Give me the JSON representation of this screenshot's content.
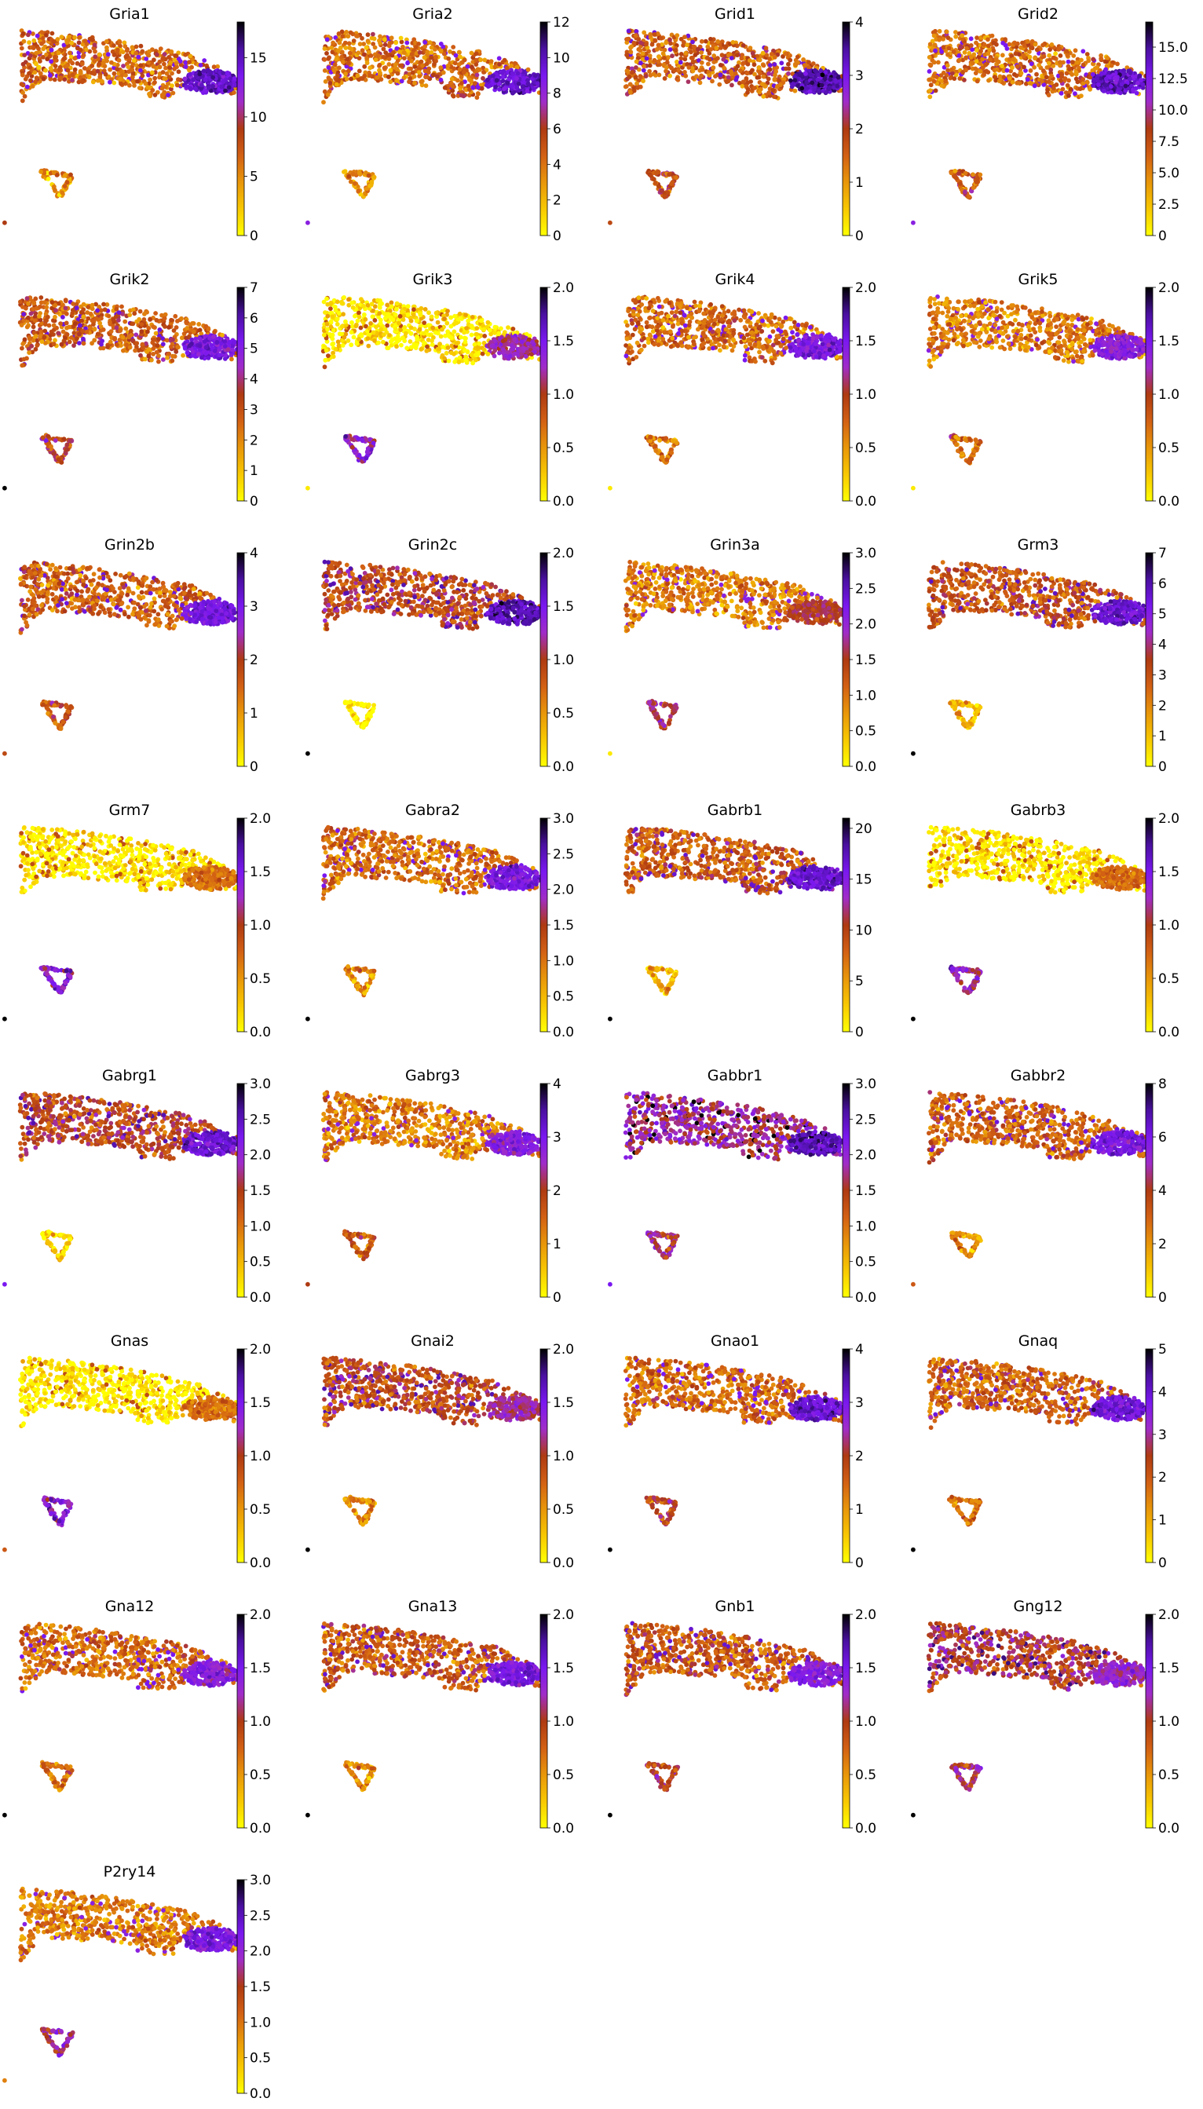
{
  "colormap": [
    "#ffff00",
    "#f8c800",
    "#e8960a",
    "#d26014",
    "#ae3a12",
    "#a02cc8",
    "#7a18f0",
    "#4a10a0",
    "#000000"
  ],
  "chart_data": [
    {
      "type": "scatter",
      "title": "Gria1",
      "vmax": 18,
      "ticks": [
        "0",
        "5",
        "10",
        "15"
      ],
      "tick_values": [
        0,
        5,
        10,
        15
      ],
      "mean_level": 0.35,
      "cluster_level": 0.8,
      "small_level": 0.25,
      "outlier_level": 0.5,
      "top_thin": false
    },
    {
      "type": "scatter",
      "title": "Gria2",
      "vmax": 12,
      "ticks": [
        "0",
        "2",
        "4",
        "6",
        "8",
        "10",
        "12"
      ],
      "tick_values": [
        0,
        2,
        4,
        6,
        8,
        10,
        12
      ],
      "mean_level": 0.35,
      "cluster_level": 0.8,
      "small_level": 0.25,
      "outlier_level": 0.7,
      "top_thin": false
    },
    {
      "type": "scatter",
      "title": "Grid1",
      "vmax": 4,
      "ticks": [
        "0",
        "1",
        "2",
        "3",
        "4"
      ],
      "tick_values": [
        0,
        1,
        2,
        3,
        4
      ],
      "mean_level": 0.38,
      "cluster_level": 0.85,
      "small_level": 0.45,
      "outlier_level": 0.45,
      "top_thin": false
    },
    {
      "type": "scatter",
      "title": "Grid2",
      "vmax": 17,
      "ticks": [
        "0",
        "2.5",
        "5.0",
        "7.5",
        "10.0",
        "12.5",
        "15.0"
      ],
      "tick_values": [
        0,
        2.5,
        5,
        7.5,
        10,
        12.5,
        15
      ],
      "mean_level": 0.35,
      "cluster_level": 0.82,
      "small_level": 0.4,
      "outlier_level": 0.7,
      "top_thin": false
    },
    {
      "type": "scatter",
      "title": "Grik2",
      "vmax": 7,
      "ticks": [
        "0",
        "1",
        "2",
        "3",
        "4",
        "5",
        "6",
        "7"
      ],
      "tick_values": [
        0,
        1,
        2,
        3,
        4,
        5,
        6,
        7
      ],
      "mean_level": 0.38,
      "cluster_level": 0.75,
      "small_level": 0.5,
      "outlier_level": 1.0,
      "top_thin": false
    },
    {
      "type": "scatter",
      "title": "Grik3",
      "vmax": 2.0,
      "ticks": [
        "0.0",
        "0.5",
        "1.0",
        "1.5",
        "2.0"
      ],
      "tick_values": [
        0,
        0.5,
        1,
        1.5,
        2
      ],
      "mean_level": 0.05,
      "cluster_level": 0.6,
      "small_level": 0.65,
      "outlier_level": 0.05,
      "top_thin": true
    },
    {
      "type": "scatter",
      "title": "Grik4",
      "vmax": 2.0,
      "ticks": [
        "0.0",
        "0.5",
        "1.0",
        "1.5",
        "2.0"
      ],
      "tick_values": [
        0,
        0.5,
        1,
        1.5,
        2
      ],
      "mean_level": 0.35,
      "cluster_level": 0.75,
      "small_level": 0.35,
      "outlier_level": 0.05,
      "top_thin": true
    },
    {
      "type": "scatter",
      "title": "Grik5",
      "vmax": 2.0,
      "ticks": [
        "0.0",
        "0.5",
        "1.0",
        "1.5",
        "2.0"
      ],
      "tick_values": [
        0,
        0.5,
        1,
        1.5,
        2
      ],
      "mean_level": 0.3,
      "cluster_level": 0.7,
      "small_level": 0.35,
      "outlier_level": 0.05,
      "top_thin": true
    },
    {
      "type": "scatter",
      "title": "Grin2b",
      "vmax": 4,
      "ticks": [
        "0",
        "1",
        "2",
        "3",
        "4"
      ],
      "tick_values": [
        0,
        1,
        2,
        3,
        4
      ],
      "mean_level": 0.38,
      "cluster_level": 0.75,
      "small_level": 0.45,
      "outlier_level": 0.45,
      "top_thin": false
    },
    {
      "type": "scatter",
      "title": "Grin2c",
      "vmax": 2.0,
      "ticks": [
        "0.0",
        "0.5",
        "1.0",
        "1.5",
        "2.0"
      ],
      "tick_values": [
        0,
        0.5,
        1,
        1.5,
        2
      ],
      "mean_level": 0.45,
      "cluster_level": 0.85,
      "small_level": 0.0,
      "outlier_level": 1.0,
      "top_thin": false
    },
    {
      "type": "scatter",
      "title": "Grin3a",
      "vmax": 3.0,
      "ticks": [
        "0.0",
        "0.5",
        "1.0",
        "1.5",
        "2.0",
        "2.5",
        "3.0"
      ],
      "tick_values": [
        0,
        0.5,
        1,
        1.5,
        2,
        2.5,
        3
      ],
      "mean_level": 0.3,
      "cluster_level": 0.5,
      "small_level": 0.55,
      "outlier_level": 0.05,
      "top_thin": true
    },
    {
      "type": "scatter",
      "title": "Grm3",
      "vmax": 7,
      "ticks": [
        "0",
        "1",
        "2",
        "3",
        "4",
        "5",
        "6",
        "7"
      ],
      "tick_values": [
        0,
        1,
        2,
        3,
        4,
        5,
        6,
        7
      ],
      "mean_level": 0.42,
      "cluster_level": 0.8,
      "small_level": 0.2,
      "outlier_level": 1.0,
      "top_thin": false
    },
    {
      "type": "scatter",
      "title": "Grm7",
      "vmax": 2.0,
      "ticks": [
        "0.0",
        "0.5",
        "1.0",
        "1.5",
        "2.0"
      ],
      "tick_values": [
        0,
        0.5,
        1,
        1.5,
        2
      ],
      "mean_level": 0.04,
      "cluster_level": 0.35,
      "small_level": 0.7,
      "outlier_level": 1.0,
      "top_thin": true
    },
    {
      "type": "scatter",
      "title": "Gabra2",
      "vmax": 3.0,
      "ticks": [
        "0.0",
        "0.5",
        "1.0",
        "1.5",
        "2.0",
        "2.5",
        "3.0"
      ],
      "tick_values": [
        0,
        0.5,
        1,
        1.5,
        2,
        2.5,
        3
      ],
      "mean_level": 0.35,
      "cluster_level": 0.75,
      "small_level": 0.3,
      "outlier_level": 1.0,
      "top_thin": false
    },
    {
      "type": "scatter",
      "title": "Gabrb1",
      "vmax": 21,
      "ticks": [
        "0",
        "5",
        "10",
        "15",
        "20"
      ],
      "tick_values": [
        0,
        5,
        10,
        15,
        20
      ],
      "mean_level": 0.4,
      "cluster_level": 0.8,
      "small_level": 0.2,
      "outlier_level": 1.0,
      "top_thin": false
    },
    {
      "type": "scatter",
      "title": "Gabrb3",
      "vmax": 2.0,
      "ticks": [
        "0.0",
        "0.5",
        "1.0",
        "1.5",
        "2.0"
      ],
      "tick_values": [
        0,
        0.5,
        1,
        1.5,
        2
      ],
      "mean_level": 0.04,
      "cluster_level": 0.35,
      "small_level": 0.65,
      "outlier_level": 1.0,
      "top_thin": true
    },
    {
      "type": "scatter",
      "title": "Gabrg1",
      "vmax": 3.0,
      "ticks": [
        "0.0",
        "0.5",
        "1.0",
        "1.5",
        "2.0",
        "2.5",
        "3.0"
      ],
      "tick_values": [
        0,
        0.5,
        1,
        1.5,
        2,
        2.5,
        3
      ],
      "mean_level": 0.45,
      "cluster_level": 0.8,
      "small_level": 0.1,
      "outlier_level": 0.75,
      "top_thin": false
    },
    {
      "type": "scatter",
      "title": "Gabrg3",
      "vmax": 4,
      "ticks": [
        "0",
        "1",
        "2",
        "3",
        "4"
      ],
      "tick_values": [
        0,
        1,
        2,
        3,
        4
      ],
      "mean_level": 0.3,
      "cluster_level": 0.7,
      "small_level": 0.4,
      "outlier_level": 0.5,
      "top_thin": false
    },
    {
      "type": "scatter",
      "title": "Gabbr1",
      "vmax": 3.0,
      "ticks": [
        "0.0",
        "0.5",
        "1.0",
        "1.5",
        "2.0",
        "2.5",
        "3.0"
      ],
      "tick_values": [
        0,
        0.5,
        1,
        1.5,
        2,
        2.5,
        3
      ],
      "mean_level": 0.6,
      "cluster_level": 0.85,
      "small_level": 0.55,
      "outlier_level": 0.75,
      "top_thin": false
    },
    {
      "type": "scatter",
      "title": "Gabbr2",
      "vmax": 8,
      "ticks": [
        "0",
        "2",
        "4",
        "6",
        "8"
      ],
      "tick_values": [
        0,
        2,
        4,
        6,
        8
      ],
      "mean_level": 0.38,
      "cluster_level": 0.75,
      "small_level": 0.25,
      "outlier_level": 0.4,
      "top_thin": false
    },
    {
      "type": "scatter",
      "title": "Gnas",
      "vmax": 2.0,
      "ticks": [
        "0.0",
        "0.5",
        "1.0",
        "1.5",
        "2.0"
      ],
      "tick_values": [
        0,
        0.5,
        1,
        1.5,
        2
      ],
      "mean_level": 0.04,
      "cluster_level": 0.35,
      "small_level": 0.7,
      "outlier_level": 0.4,
      "top_thin": true
    },
    {
      "type": "scatter",
      "title": "Gnai2",
      "vmax": 2.0,
      "ticks": [
        "0.0",
        "0.5",
        "1.0",
        "1.5",
        "2.0"
      ],
      "tick_values": [
        0,
        0.5,
        1,
        1.5,
        2
      ],
      "mean_level": 0.45,
      "cluster_level": 0.6,
      "small_level": 0.3,
      "outlier_level": 1.0,
      "top_thin": false
    },
    {
      "type": "scatter",
      "title": "Gnao1",
      "vmax": 4,
      "ticks": [
        "0",
        "1",
        "2",
        "3",
        "4"
      ],
      "tick_values": [
        0,
        1,
        2,
        3,
        4
      ],
      "mean_level": 0.35,
      "cluster_level": 0.8,
      "small_level": 0.45,
      "outlier_level": 1.0,
      "top_thin": false
    },
    {
      "type": "scatter",
      "title": "Gnaq",
      "vmax": 5,
      "ticks": [
        "0",
        "1",
        "2",
        "3",
        "4",
        "5"
      ],
      "tick_values": [
        0,
        1,
        2,
        3,
        4,
        5
      ],
      "mean_level": 0.38,
      "cluster_level": 0.78,
      "small_level": 0.35,
      "outlier_level": 1.0,
      "top_thin": false
    },
    {
      "type": "scatter",
      "title": "Gna12",
      "vmax": 2.0,
      "ticks": [
        "0.0",
        "0.5",
        "1.0",
        "1.5",
        "2.0"
      ],
      "tick_values": [
        0,
        0.5,
        1,
        1.5,
        2
      ],
      "mean_level": 0.35,
      "cluster_level": 0.7,
      "small_level": 0.35,
      "outlier_level": 1.0,
      "top_thin": true
    },
    {
      "type": "scatter",
      "title": "Gna13",
      "vmax": 2.0,
      "ticks": [
        "0.0",
        "0.5",
        "1.0",
        "1.5",
        "2.0"
      ],
      "tick_values": [
        0,
        0.5,
        1,
        1.5,
        2
      ],
      "mean_level": 0.4,
      "cluster_level": 0.75,
      "small_level": 0.3,
      "outlier_level": 1.0,
      "top_thin": false
    },
    {
      "type": "scatter",
      "title": "Gnb1",
      "vmax": 2.0,
      "ticks": [
        "0.0",
        "0.5",
        "1.0",
        "1.5",
        "2.0"
      ],
      "tick_values": [
        0,
        0.5,
        1,
        1.5,
        2
      ],
      "mean_level": 0.4,
      "cluster_level": 0.7,
      "small_level": 0.5,
      "outlier_level": 1.0,
      "top_thin": false
    },
    {
      "type": "scatter",
      "title": "Gng12",
      "vmax": 2.0,
      "ticks": [
        "0.0",
        "0.5",
        "1.0",
        "1.5",
        "2.0"
      ],
      "tick_values": [
        0,
        0.5,
        1,
        1.5,
        2
      ],
      "mean_level": 0.5,
      "cluster_level": 0.65,
      "small_level": 0.55,
      "outlier_level": 1.0,
      "top_thin": false
    },
    {
      "type": "scatter",
      "title": "P2ry14",
      "vmax": 3.0,
      "ticks": [
        "0.0",
        "0.5",
        "1.0",
        "1.5",
        "2.0",
        "2.5",
        "3.0"
      ],
      "tick_values": [
        0,
        0.5,
        1,
        1.5,
        2,
        2.5,
        3
      ],
      "mean_level": 0.3,
      "cluster_level": 0.75,
      "small_level": 0.55,
      "outlier_level": 0.3,
      "top_thin": true
    }
  ]
}
